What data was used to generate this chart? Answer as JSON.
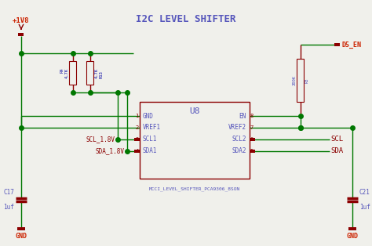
{
  "bg_color": "#f0f0eb",
  "wire_color": "#007700",
  "component_color": "#8B0000",
  "text_blue": "#5555bb",
  "text_red": "#cc2200",
  "title": "I2C LEVEL SHIFTER",
  "ic_label": "U8",
  "ic_part": "MCCI_LEVEL_SHIFTER_PCA9306_8SON",
  "vcc_label": "+1V8",
  "gnd_label": "GND",
  "d5en_label": "D5_EN",
  "scl_label": "SCL",
  "sda_label": "SDA",
  "scl18_label": "SCL_1.8V",
  "sda18_label": "SDA_1.8V",
  "c17_label": "C17",
  "c17_val": "1uf",
  "c21_label": "C21",
  "c21_val": "1uf"
}
